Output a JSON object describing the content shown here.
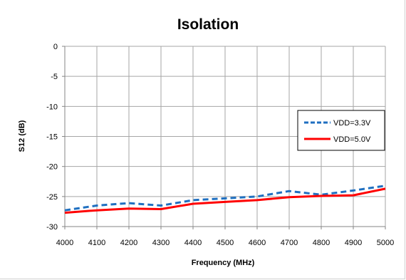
{
  "chart_data": {
    "type": "line",
    "title": "Isolation",
    "xlabel": "Frequency (MHz)",
    "ylabel": "S12 (dB)",
    "xlim": [
      4000,
      5000
    ],
    "ylim": [
      -30,
      0
    ],
    "x_ticks": [
      "4000",
      "4100",
      "4200",
      "4300",
      "4400",
      "4500",
      "4600",
      "4700",
      "4800",
      "4900",
      "5000"
    ],
    "y_ticks": [
      "0",
      "-5",
      "-10",
      "-15",
      "-20",
      "-25",
      "-30"
    ],
    "grid": true,
    "legend_position": "right",
    "series": [
      {
        "name": "VDD=3.3V",
        "color": "#1f6fc0",
        "style": "dashed",
        "x": [
          4000,
          4100,
          4200,
          4300,
          4400,
          4500,
          4600,
          4700,
          4800,
          4900,
          5000
        ],
        "y": [
          -27.3,
          -26.5,
          -26.1,
          -26.5,
          -25.6,
          -25.3,
          -25.0,
          -24.1,
          -24.7,
          -24.0,
          -23.2
        ]
      },
      {
        "name": "VDD=5.0V",
        "color": "#ff0000",
        "style": "solid",
        "x": [
          4000,
          4100,
          4200,
          4300,
          4400,
          4500,
          4600,
          4700,
          4800,
          4900,
          5000
        ],
        "y": [
          -27.7,
          -27.3,
          -27.0,
          -27.1,
          -26.2,
          -25.9,
          -25.6,
          -25.1,
          -24.9,
          -24.8,
          -23.7
        ]
      }
    ]
  }
}
